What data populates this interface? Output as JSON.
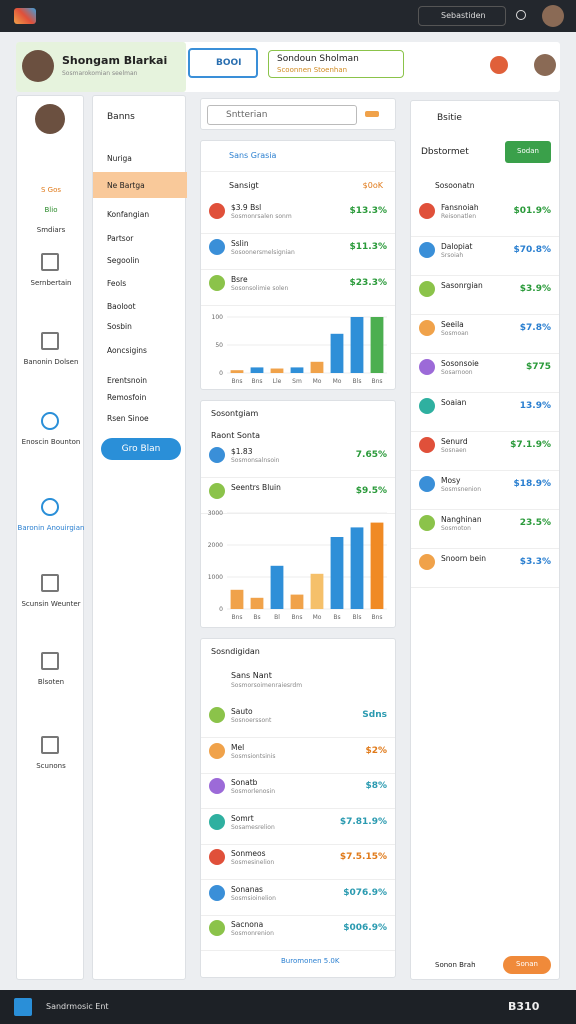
{
  "topbar": {
    "search": "Sebastiden"
  },
  "profile": {
    "name": "Shongam Blarkai",
    "subtitle": "Sosmarokomian seelman"
  },
  "search_button": "BOOI",
  "header_card": {
    "title": "Sondoun Sholman",
    "subtitle": "Scoonnen Stoenhan"
  },
  "sidebar": {
    "items": [
      "S Gos",
      "Blio",
      "Smdiars",
      "Sernbertain",
      "Banonin Dolsen",
      "Enoscin Bounton",
      "Baronin Anouirgian",
      "Scunsin Weunter",
      "Blsoten",
      "Scunons"
    ]
  },
  "menu": {
    "title": "Banns",
    "items": [
      "Nuriga",
      "Ne Bartga",
      "Konfangian",
      "Partsor",
      "Segoolin",
      "Feols",
      "Baoloot",
      "Sosbin",
      "Aoncsigins",
      "Erentsnoin",
      "Remosfoin",
      "Rsen Sinoe"
    ],
    "button": "Gro Blan"
  },
  "search_field": {
    "placeholder": "Sntterian"
  },
  "card1": {
    "title": "Sans Grasia",
    "head": {
      "title": "Sansigt",
      "value": "$0oK"
    },
    "rows": [
      {
        "title": "$3.9 Bsl",
        "sub": "Sosmonrsalen sonm",
        "value": "$13.3%"
      },
      {
        "title": "Sslin",
        "sub": "Sosoonersmelsignian",
        "value": "$11.3%"
      },
      {
        "title": "Bsre",
        "sub": "Sosonsolimie solen",
        "value": "$23.3%"
      }
    ],
    "chart": {
      "ylim": [
        0,
        100
      ],
      "yticks": [
        0,
        50,
        100
      ],
      "categories": [
        "Bns",
        "Bns",
        "Lle",
        "Sm",
        "Mo",
        "Mo",
        "Bls",
        "Bns"
      ],
      "values": [
        5,
        10,
        8,
        10,
        20,
        70,
        100,
        100
      ],
      "colors": [
        "#f0a24a",
        "#2f8fd8",
        "#f0a24a",
        "#2f8fd8",
        "#f0a24a",
        "#2f8fd8",
        "#2f8fd8",
        "#4caf50"
      ]
    }
  },
  "card2": {
    "title": "Sosontgiam",
    "subtitle": "Raont Sonta",
    "rows": [
      {
        "title": "$1.83",
        "sub": "Sosmonsalnsoin",
        "value": "7.65%"
      },
      {
        "title": "Seentrs Bluin",
        "sub": "",
        "value": "$9.5%"
      }
    ],
    "chart": {
      "ylim": [
        0,
        3000
      ],
      "yticks": [
        0,
        1000,
        2000,
        3000
      ],
      "categories": [
        "Bns",
        "Bs",
        "Bl",
        "Bns",
        "Mo",
        "Bs",
        "Bls",
        "Bns"
      ],
      "values": [
        600,
        350,
        1350,
        450,
        1100,
        2250,
        2550,
        2700
      ],
      "colors": [
        "#f0a24a",
        "#f0a24a",
        "#2f8fd8",
        "#f0a24a",
        "#f5c06a",
        "#2f8fd8",
        "#2f8fd8",
        "#f08a24"
      ]
    }
  },
  "card3": {
    "title": "Sosndigidan",
    "head": {
      "title": "Sans Nant",
      "sub": "Sosmorsoimenraiesrdm"
    },
    "rows": [
      {
        "title": "Sauto",
        "sub": "Sosnoerssont",
        "value": "Sdns"
      },
      {
        "title": "Mel",
        "sub": "Sosmsiontsinis",
        "value": "$2%"
      },
      {
        "title": "Sonatb",
        "sub": "Sosmorlenosin",
        "value": "$8%"
      },
      {
        "title": "Somrt",
        "sub": "Sosamesrelion",
        "value": "$7.81.9%"
      },
      {
        "title": "Sonmeos",
        "sub": "Sosmesinelion",
        "value": "$7.5.15%"
      },
      {
        "title": "Sonanas",
        "sub": "Sosmsioinelion",
        "value": "$076.9%"
      },
      {
        "title": "Sacnona",
        "sub": "Sosmonrenion",
        "value": "$006.9%"
      }
    ],
    "footer": "Buromonen 5.0K"
  },
  "right": {
    "title": "Bsitie",
    "subtitle": "Dbstormet",
    "button": "Sodan",
    "section": "Sosoonatn",
    "rows": [
      {
        "title": "Fansnoiah",
        "sub": "Reisonatlen",
        "value": "$01.9%"
      },
      {
        "title": "Dalopiat",
        "sub": "Srsoiah",
        "value": "$70.8%"
      },
      {
        "title": "Sasonrgian",
        "sub": "",
        "value": "$3.9%"
      },
      {
        "title": "Seeila",
        "sub": "Sosmoan",
        "value": "$7.8%"
      },
      {
        "title": "Sosonsoie",
        "sub": "Sosarnoon",
        "value": "$775"
      },
      {
        "title": "Soaian",
        "sub": "",
        "value": "13.9%"
      },
      {
        "title": "Senurd",
        "sub": "Sosnaen",
        "value": "$7.1.9%"
      },
      {
        "title": "Mosy",
        "sub": "Sosmsnenion",
        "value": "$18.9%"
      },
      {
        "title": "Nanghinan",
        "sub": "Sosmoton",
        "value": "23.5%"
      },
      {
        "title": "Snoorn bein",
        "sub": "",
        "value": "$3.3%"
      }
    ],
    "footer": "Sonon Brah",
    "footer_button": "Sonan"
  },
  "taskbar": {
    "label": "Sandrmosic Ent",
    "right": "B310"
  }
}
